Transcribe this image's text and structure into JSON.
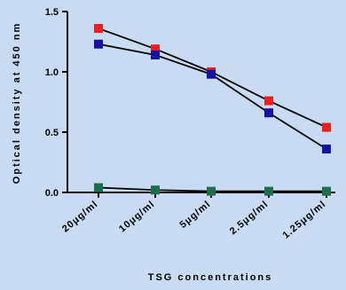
{
  "chart_data": {
    "type": "line",
    "title": "",
    "xlabel": "TSG concentrations",
    "ylabel": "Optical density at 450 nm",
    "categories": [
      "20μg/ml",
      "10μg/ml",
      "5μg/ml",
      "2.5μg/ml",
      "1.25μg/ml"
    ],
    "yticks": [
      "0.0",
      "0.5",
      "1.0",
      "1.5"
    ],
    "ylim": [
      0,
      1.5
    ],
    "grid": false,
    "legend": "none",
    "series": [
      {
        "color": "#e8201f",
        "marker": "square",
        "values": [
          1.36,
          1.19,
          1.0,
          0.76,
          0.54
        ]
      },
      {
        "color": "#1414a0",
        "marker": "square",
        "values": [
          1.23,
          1.14,
          0.98,
          0.66,
          0.36
        ]
      },
      {
        "color": "#1d6e4e",
        "marker": "square",
        "values": [
          0.04,
          0.02,
          0.01,
          0.01,
          0.01
        ]
      }
    ]
  }
}
